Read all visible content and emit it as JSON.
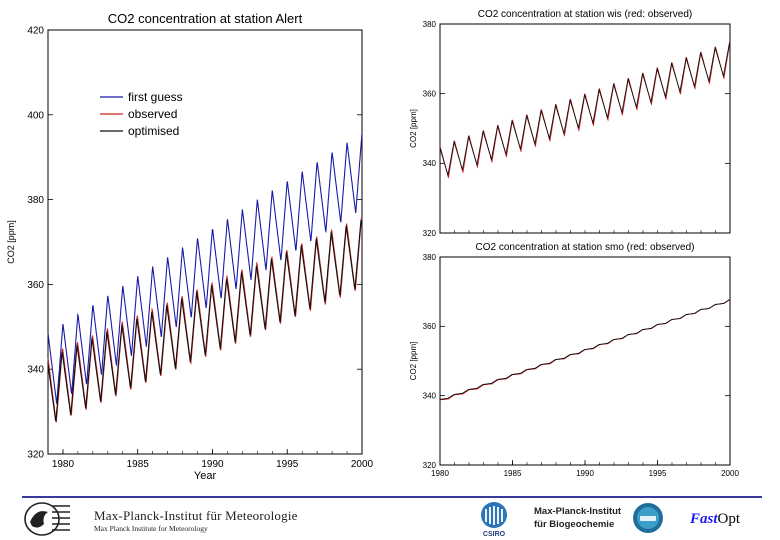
{
  "chart_data": [
    {
      "type": "line",
      "title": "CO2 concentration at station Alert",
      "xlabel": "Year",
      "ylabel": "CO2 [ppm]",
      "xlim": [
        1979,
        2000
      ],
      "ylim": [
        320,
        420
      ],
      "xticks": [
        1980,
        1985,
        1990,
        1995,
        2000
      ],
      "yticks": [
        320,
        340,
        360,
        380,
        400,
        420
      ],
      "legend_position": "upper-left",
      "grid": false,
      "series": [
        {
          "name": "first guess",
          "color": "#1a1aa8",
          "trend_start": 339.5,
          "trend_slope": 2.25,
          "amplitude": 18
        },
        {
          "name": "observed",
          "color": "#d42020",
          "trend_start": 335.0,
          "trend_slope": 1.55,
          "amplitude": 17
        },
        {
          "name": "optimised",
          "color": "#111111",
          "trend_start": 334.8,
          "trend_slope": 1.56,
          "amplitude": 16
        }
      ]
    },
    {
      "type": "line",
      "title": "CO2 concentration at station wis (red: observed)",
      "xlabel": "",
      "ylabel": "CO2 [ppm]",
      "xlim": [
        1980,
        2000
      ],
      "ylim": [
        320,
        380
      ],
      "yticks": [
        320,
        340,
        360,
        380
      ],
      "grid": false,
      "series": [
        {
          "name": "",
          "color": "#d42020",
          "trend_start": 340.0,
          "trend_slope": 1.5,
          "amplitude": 10
        },
        {
          "name": "",
          "color": "#111111",
          "trend_start": 340.3,
          "trend_slope": 1.5,
          "amplitude": 9
        }
      ]
    },
    {
      "type": "line",
      "title": "CO2 concentration at station smo (red: observed)",
      "xlabel": "",
      "ylabel": "CO2 [ppm]",
      "xlim": [
        1980,
        2000
      ],
      "ylim": [
        320,
        380
      ],
      "xticks": [
        1980,
        1985,
        1990,
        1995,
        2000
      ],
      "yticks": [
        320,
        340,
        360,
        380
      ],
      "grid": false,
      "series": [
        {
          "name": "",
          "color": "#d42020",
          "trend_start": 338.5,
          "trend_slope": 1.45,
          "amplitude": 0.6
        },
        {
          "name": "",
          "color": "#111111",
          "trend_start": 338.7,
          "trend_slope": 1.44,
          "amplitude": 0.5
        }
      ]
    }
  ],
  "footer": {
    "mpi_title": "Max-Planck-Institut für Meteorologie",
    "mpi_subtitle": "Max Planck Institute for Meteorology",
    "csiro_label": "CSIRO",
    "mpibgc_line1": "Max-Planck-Institut",
    "mpibgc_line2": "für Biogeochemie",
    "fastopt_fast": "Fast",
    "fastopt_opt": "Opt",
    "colors": {
      "rule": "#3a3a9c",
      "fast": "#1a1aff"
    }
  }
}
